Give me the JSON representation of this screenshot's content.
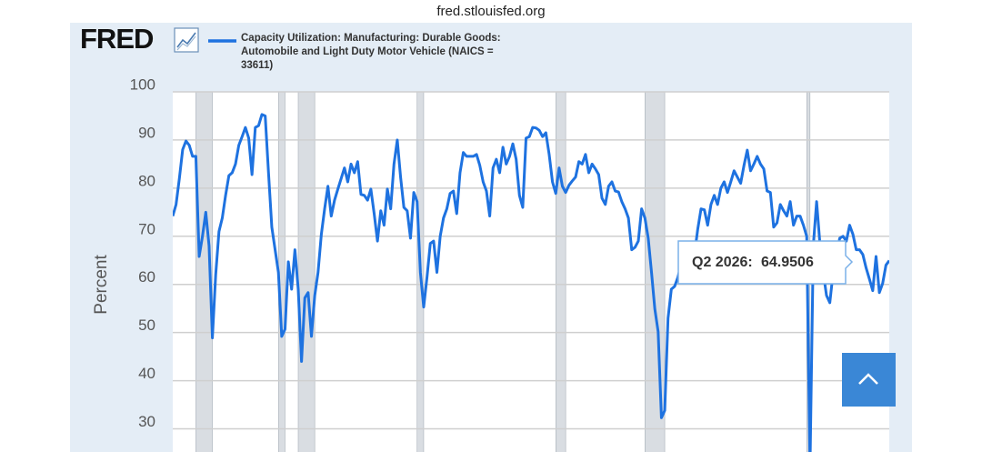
{
  "url": "fred.stlouisfed.org",
  "logo": "FRED",
  "chart_data": {
    "type": "line",
    "y_label": "Percent",
    "ylim": [
      25,
      100
    ],
    "yticks": [
      30,
      40,
      50,
      60,
      70,
      80,
      90,
      100
    ],
    "xlim": [
      1972,
      2026.25
    ],
    "grid": true,
    "recessions": [
      [
        1973.75,
        1975
      ],
      [
        1980,
        1980.5
      ],
      [
        1981.5,
        1982.75
      ],
      [
        1990.5,
        1991
      ],
      [
        2001,
        2001.75
      ],
      [
        2007.75,
        2009.25
      ],
      [
        2020,
        2020.25
      ]
    ],
    "x": [
      1972,
      1972.25,
      1972.5,
      1972.75,
      1973,
      1973.25,
      1973.5,
      1973.75,
      1974,
      1974.25,
      1974.5,
      1974.75,
      1975,
      1975.25,
      1975.5,
      1975.75,
      1976,
      1976.25,
      1976.5,
      1976.75,
      1977,
      1977.25,
      1977.5,
      1977.75,
      1978,
      1978.25,
      1978.5,
      1978.75,
      1979,
      1979.25,
      1979.5,
      1979.75,
      1980,
      1980.25,
      1980.5,
      1980.75,
      1981,
      1981.25,
      1981.5,
      1981.75,
      1982,
      1982.25,
      1982.5,
      1982.75,
      1983,
      1983.25,
      1983.5,
      1983.75,
      1984,
      1984.25,
      1984.5,
      1984.75,
      1985,
      1985.25,
      1985.5,
      1985.75,
      1986,
      1986.25,
      1986.5,
      1986.75,
      1987,
      1987.25,
      1987.5,
      1987.75,
      1988,
      1988.25,
      1988.5,
      1988.75,
      1989,
      1989.25,
      1989.5,
      1989.75,
      1990,
      1990.25,
      1990.5,
      1990.75,
      1991,
      1991.25,
      1991.5,
      1991.75,
      1992,
      1992.25,
      1992.5,
      1992.75,
      1993,
      1993.25,
      1993.5,
      1993.75,
      1994,
      1994.25,
      1994.5,
      1994.75,
      1995,
      1995.25,
      1995.5,
      1995.75,
      1996,
      1996.25,
      1996.5,
      1996.75,
      1997,
      1997.25,
      1997.5,
      1997.75,
      1998,
      1998.25,
      1998.5,
      1998.75,
      1999,
      1999.25,
      1999.5,
      1999.75,
      2000,
      2000.25,
      2000.5,
      2000.75,
      2001,
      2001.25,
      2001.5,
      2001.75,
      2002,
      2002.25,
      2002.5,
      2002.75,
      2003,
      2003.25,
      2003.5,
      2003.75,
      2004,
      2004.25,
      2004.5,
      2004.75,
      2005,
      2005.25,
      2005.5,
      2005.75,
      2006,
      2006.25,
      2006.5,
      2006.75,
      2007,
      2007.25,
      2007.5,
      2007.75,
      2008,
      2008.25,
      2008.5,
      2008.75,
      2009,
      2009.25,
      2009.5,
      2009.75,
      2010,
      2010.25,
      2010.5,
      2010.75,
      2011,
      2011.25,
      2011.5,
      2011.75,
      2012,
      2012.25,
      2012.5,
      2012.75,
      2013,
      2013.25,
      2013.5,
      2013.75,
      2014,
      2014.25,
      2014.5,
      2014.75,
      2015,
      2015.25,
      2015.5,
      2015.75,
      2016,
      2016.25,
      2016.5,
      2016.75,
      2017,
      2017.25,
      2017.5,
      2017.75,
      2018,
      2018.25,
      2018.5,
      2018.75,
      2019,
      2019.25,
      2019.5,
      2019.75,
      2020,
      2020.25,
      2020.5,
      2020.75,
      2021,
      2021.25,
      2021.5,
      2021.75,
      2022,
      2022.25,
      2022.5,
      2022.75,
      2023,
      2023.25,
      2023.5,
      2023.75,
      2024,
      2024.25,
      2024.5,
      2024.75,
      2025,
      2025.25,
      2025.5,
      2025.75,
      2026,
      2026.25
    ],
    "series": [
      {
        "name": "Capacity Utilization: Manufacturing: Durable Goods: Automobile and Light Duty Motor Vehicle (NAICS = 33611)",
        "color": "#1e72e0",
        "values": [
          74.2,
          76.6,
          82,
          88,
          89.8,
          88.9,
          86.6,
          86.6,
          65.8,
          70,
          75,
          68,
          48.9,
          62,
          71,
          73.8,
          78.5,
          82.6,
          83.2,
          85,
          88.9,
          90.7,
          92.6,
          90.4,
          82.8,
          92.6,
          93,
          95.3,
          95,
          83.2,
          71.9,
          67.2,
          62.5,
          49.2,
          50.7,
          64.7,
          59,
          67.2,
          59,
          44,
          57.2,
          58.3,
          49.2,
          57.7,
          62.5,
          70.4,
          75.7,
          80.4,
          74.2,
          77.5,
          79.8,
          82,
          84.2,
          81.3,
          85,
          83.2,
          85.5,
          78.7,
          78.5,
          77.5,
          79.8,
          74.7,
          69,
          75.3,
          72.3,
          79.8,
          75.7,
          85,
          90,
          82.3,
          76,
          75.3,
          69.6,
          79.1,
          77.2,
          62.5,
          55.3,
          61.5,
          68.5,
          69,
          62.5,
          70,
          73.8,
          75.7,
          78.9,
          79.4,
          74.7,
          83.2,
          87.4,
          86.6,
          86.6,
          86.6,
          87,
          84.7,
          81.3,
          79.4,
          74.2,
          84.2,
          86,
          83.2,
          88.5,
          85,
          86.6,
          89.2,
          86,
          78.5,
          76,
          90.4,
          90.7,
          92.6,
          92.5,
          92,
          90.7,
          91.5,
          87,
          81.3,
          78.9,
          84.2,
          80.4,
          79.1,
          80.6,
          81.5,
          82.3,
          85.5,
          85,
          87,
          83.2,
          85,
          84,
          82.8,
          77.9,
          76.6,
          80.4,
          81.3,
          79.4,
          79.2,
          77.2,
          75.7,
          73.8,
          67.2,
          67.7,
          69,
          75.7,
          73.8,
          69.6,
          62.5,
          54.9,
          50.2,
          32.3,
          33.8,
          53,
          59,
          59.6,
          61.5,
          64.3,
          67.2,
          68,
          64.3,
          66.2,
          71.5,
          75.7,
          75.5,
          72.3,
          76.6,
          78.5,
          76.6,
          80,
          81.3,
          79.1,
          81.3,
          83.6,
          82.3,
          81,
          84.7,
          87.9,
          83.6,
          85,
          86.6,
          85,
          84,
          79.4,
          79.1,
          71.9,
          72.8,
          76.6,
          75.3,
          74.2,
          77.2,
          72.3,
          74.2,
          74.2,
          72.3,
          70,
          22,
          68.1,
          77.2,
          68.5,
          62.5,
          57.7,
          56.2,
          62.5,
          66.2,
          69.6,
          70,
          69,
          72.3,
          70.4,
          67.2,
          67.2,
          66.2,
          63.4,
          61.1,
          58.7,
          65.8,
          58.3,
          60.2,
          64,
          64.9506
        ]
      }
    ],
    "tooltip": {
      "label": "Q2 2026:"
    }
  }
}
